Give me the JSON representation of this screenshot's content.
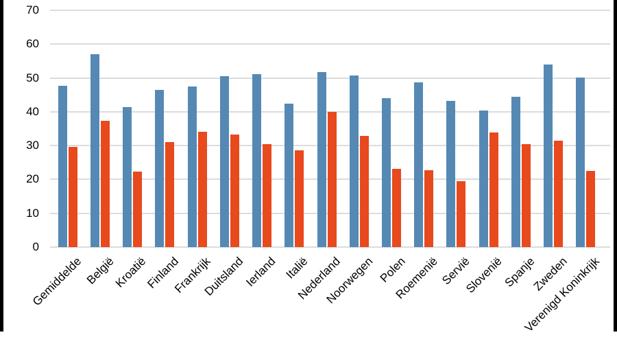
{
  "figure": {
    "background_color": "#ffffff",
    "side_border_color": "#000000"
  },
  "chart_data": {
    "type": "bar",
    "title": "",
    "xlabel": "",
    "ylabel": "",
    "categories": [
      "Gemiddelde",
      "België",
      "Kroatië",
      "Finland",
      "Frankrijk",
      "Duitsland",
      "Ierland",
      "Italië",
      "Nederland",
      "Noorwegen",
      "Polen",
      "Roemenië",
      "Servië",
      "Slovenië",
      "Spanje",
      "Zweden",
      "Verenigd Koninkrijk"
    ],
    "series": [
      {
        "name": "blue",
        "color": "#5589B4",
        "values": [
          47.6,
          57.1,
          41.4,
          46.5,
          47.4,
          50.6,
          51.2,
          42.4,
          51.7,
          50.7,
          44.0,
          48.8,
          43.2,
          40.4,
          44.4,
          54.0,
          50.1
        ]
      },
      {
        "name": "orange",
        "color": "#E8491D",
        "values": [
          29.6,
          37.3,
          22.4,
          31.0,
          34.1,
          33.3,
          30.4,
          28.7,
          39.9,
          32.8,
          23.1,
          22.7,
          19.5,
          33.9,
          30.4,
          31.4,
          22.6
        ]
      }
    ],
    "ylim": [
      0,
      70
    ],
    "yticks": [
      0,
      10,
      20,
      30,
      40,
      50,
      60,
      70
    ],
    "grid": true,
    "gridline_color": "#DCDCDC",
    "legend_position": "none",
    "x_tick_rotation": 45
  }
}
